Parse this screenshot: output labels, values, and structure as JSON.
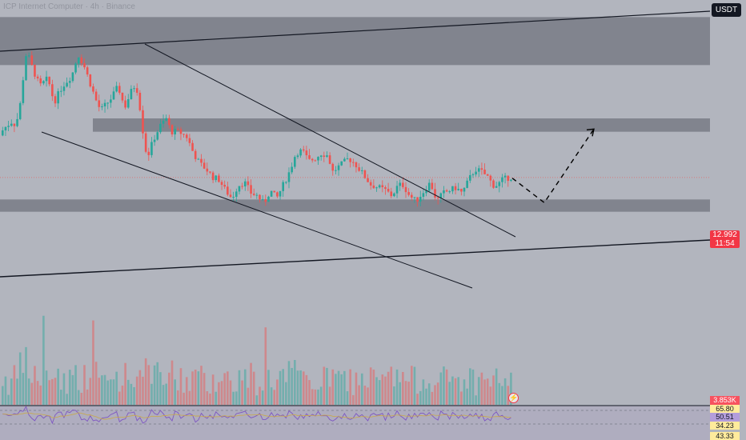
{
  "header": {
    "title": "ICP Internet Computer · 4h · Binance"
  },
  "unit_label": "USDT",
  "price_badge": {
    "price": "12.992",
    "countdown": "11:54"
  },
  "volume_badge": "3.853K",
  "rsi_badges": [
    "65.80",
    "50.51",
    "34.23",
    "43.33"
  ],
  "colors": {
    "background": "#b2b5be",
    "zone": "#787b86",
    "up": "#26a69a",
    "down": "#ef5350",
    "trendline": "#131722",
    "rsi_line": "#7e57c2",
    "rsi_ma": "#ffeb9c"
  },
  "icons": {
    "flash": "lightning-icon"
  },
  "chart_data": {
    "type": "candlestick",
    "symbol_unit": "USDT",
    "last_price": 12.992,
    "y_range": [
      10.8,
      16.2
    ],
    "zones": [
      {
        "name": "resistance-zone-top",
        "from": 15.1,
        "to": 16.0
      },
      {
        "name": "resistance-zone-mid",
        "from": 13.85,
        "to": 14.1
      },
      {
        "name": "support-zone",
        "from": 12.35,
        "to": 12.58
      }
    ],
    "candles": {
      "count": 175,
      "anchors": [
        [
          0,
          13.78
        ],
        [
          10,
          13.95
        ],
        [
          18,
          14.05
        ],
        [
          22,
          13.95
        ],
        [
          28,
          14.4
        ],
        [
          33,
          15.1
        ],
        [
          36,
          15.4
        ],
        [
          39,
          15.2
        ],
        [
          44,
          15.0
        ],
        [
          52,
          14.7
        ],
        [
          62,
          14.85
        ],
        [
          70,
          14.4
        ],
        [
          80,
          14.7
        ],
        [
          92,
          14.9
        ],
        [
          100,
          15.3
        ],
        [
          107,
          15.1
        ],
        [
          114,
          14.8
        ],
        [
          122,
          14.45
        ],
        [
          128,
          14.25
        ],
        [
          134,
          14.35
        ],
        [
          140,
          14.45
        ],
        [
          150,
          14.7
        ],
        [
          158,
          14.3
        ],
        [
          166,
          14.6
        ],
        [
          172,
          14.75
        ],
        [
          176,
          14.45
        ],
        [
          180,
          13.95
        ],
        [
          186,
          13.35
        ],
        [
          194,
          13.7
        ],
        [
          202,
          13.95
        ],
        [
          210,
          14.1
        ],
        [
          216,
          13.85
        ],
        [
          226,
          13.85
        ],
        [
          236,
          13.75
        ],
        [
          244,
          13.45
        ],
        [
          252,
          13.25
        ],
        [
          260,
          13.15
        ],
        [
          268,
          13.0
        ],
        [
          276,
          12.95
        ],
        [
          284,
          12.75
        ],
        [
          292,
          12.6
        ],
        [
          300,
          12.85
        ],
        [
          308,
          12.9
        ],
        [
          316,
          12.7
        ],
        [
          324,
          12.65
        ],
        [
          332,
          12.5
        ],
        [
          340,
          12.75
        ],
        [
          348,
          12.6
        ],
        [
          356,
          12.85
        ],
        [
          364,
          13.1
        ],
        [
          372,
          13.45
        ],
        [
          380,
          13.5
        ],
        [
          388,
          13.3
        ],
        [
          396,
          13.35
        ],
        [
          404,
          13.45
        ],
        [
          412,
          13.4
        ],
        [
          418,
          13.1
        ],
        [
          426,
          13.2
        ],
        [
          438,
          13.35
        ],
        [
          446,
          13.25
        ],
        [
          456,
          13.05
        ],
        [
          466,
          12.85
        ],
        [
          476,
          12.8
        ],
        [
          484,
          12.75
        ],
        [
          492,
          12.65
        ],
        [
          500,
          12.85
        ],
        [
          506,
          12.85
        ],
        [
          514,
          12.65
        ],
        [
          522,
          12.55
        ],
        [
          530,
          12.7
        ],
        [
          540,
          12.9
        ],
        [
          548,
          12.55
        ],
        [
          556,
          12.7
        ],
        [
          564,
          12.75
        ],
        [
          572,
          12.8
        ],
        [
          580,
          12.7
        ],
        [
          588,
          12.95
        ],
        [
          596,
          13.15
        ],
        [
          604,
          13.1
        ],
        [
          612,
          13.0
        ],
        [
          618,
          12.85
        ],
        [
          624,
          12.85
        ],
        [
          630,
          12.95
        ],
        [
          640,
          13.0
        ]
      ]
    },
    "projection": [
      [
        640,
        12.98
      ],
      [
        680,
        12.52
      ],
      [
        742,
        13.9
      ]
    ],
    "volume": {
      "last": "3.853K"
    },
    "rsi": {
      "value": "50.51",
      "levels": [
        "65.80",
        "34.23"
      ]
    }
  }
}
